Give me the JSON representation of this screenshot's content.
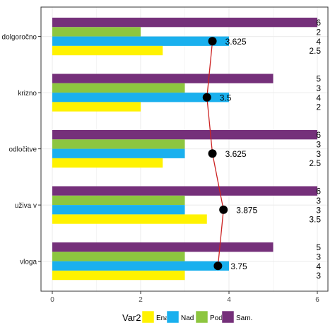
{
  "chart_data": {
    "type": "bar",
    "orientation": "horizontal",
    "categories": [
      "dolgoročno",
      "krizno",
      "odločitve",
      "uživa v",
      "vloga"
    ],
    "series": [
      {
        "name": "Sam.",
        "color": "#75307a",
        "values": [
          6,
          5,
          6,
          6,
          5
        ]
      },
      {
        "name": "Pod",
        "color": "#8dc63f",
        "values": [
          2,
          3,
          3,
          3,
          3
        ]
      },
      {
        "name": "Nad",
        "color": "#1ab0ee",
        "values": [
          4,
          4,
          3,
          3,
          4
        ]
      },
      {
        "name": "Enak",
        "color": "#fff200",
        "values": [
          2.5,
          2,
          2.5,
          3.5,
          3
        ]
      }
    ],
    "overlay_line": {
      "color": "#cc2222",
      "point_color": "#000000",
      "values": [
        3.625,
        3.5,
        3.625,
        3.875,
        3.75
      ],
      "labels": [
        "3.625",
        "3.5",
        "3.625",
        "3.875",
        "3.75"
      ]
    },
    "right_labels": [
      [
        "6",
        "2",
        "4",
        "2.5"
      ],
      [
        "5",
        "3",
        "4",
        "2"
      ],
      [
        "6",
        "3",
        "3",
        "2.5"
      ],
      [
        "6",
        "3",
        "3",
        "3.5"
      ],
      [
        "5",
        "3",
        "4",
        "3"
      ]
    ],
    "x_ticks": [
      "0",
      "2",
      "4",
      "6"
    ],
    "xlim": [
      0,
      6
    ],
    "grid": true,
    "legend": {
      "title": "Var2",
      "position": "bottom",
      "entries": [
        {
          "label": "Enak",
          "color": "#fff200"
        },
        {
          "label": "Nad",
          "color": "#1ab0ee"
        },
        {
          "label": "Pod",
          "color": "#8dc63f"
        },
        {
          "label": "Sam.",
          "color": "#75307a"
        }
      ]
    }
  }
}
